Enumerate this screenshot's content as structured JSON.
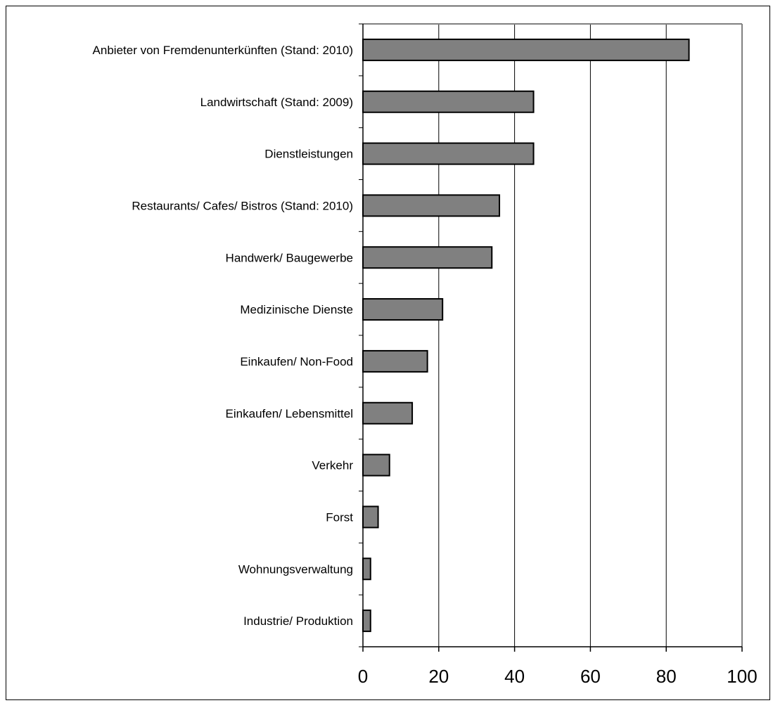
{
  "chart_data": {
    "type": "bar",
    "orientation": "horizontal",
    "categories": [
      "Anbieter von Fremdenunterkünften (Stand: 2010)",
      "Landwirtschaft (Stand: 2009)",
      "Dienstleistungen",
      "Restaurants/ Cafes/ Bistros (Stand: 2010)",
      "Handwerk/ Baugewerbe",
      "Medizinische Dienste",
      "Einkaufen/ Non-Food",
      "Einkaufen/ Lebensmittel",
      "Verkehr",
      "Forst",
      "Wohnungsverwaltung",
      "Industrie/ Produktion"
    ],
    "values": [
      86,
      45,
      45,
      36,
      34,
      21,
      17,
      13,
      7,
      4,
      2,
      2
    ],
    "xlim": [
      0,
      100
    ],
    "xticks": [
      0,
      20,
      40,
      60,
      80,
      100
    ],
    "title": "",
    "xlabel": "",
    "ylabel": "",
    "grid": "vertical",
    "legend": "none",
    "colors": {
      "bar_fill": "#808080",
      "bar_stroke": "#000000",
      "grid": "#000000",
      "axis": "#000000",
      "plot_border": "#808080"
    }
  }
}
